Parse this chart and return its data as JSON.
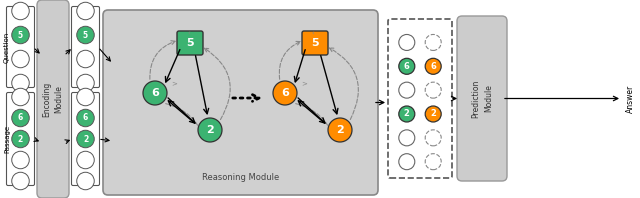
{
  "bg_color": "#ffffff",
  "node_green": "#3cb371",
  "node_orange": "#ff8c00",
  "enc_fill": "#cccccc",
  "enc_edge": "#999999",
  "rm_fill": "#d0d0d0",
  "rm_edge": "#888888",
  "pred_fill": "#cccccc",
  "pred_edge": "#999999",
  "q_label": "Question",
  "p_label": "Passage",
  "rm_label": "Reasoning Module",
  "pm_label": "Prediction\nModule",
  "enc_label": "Encoding\nModule",
  "ans_label": "Answer"
}
